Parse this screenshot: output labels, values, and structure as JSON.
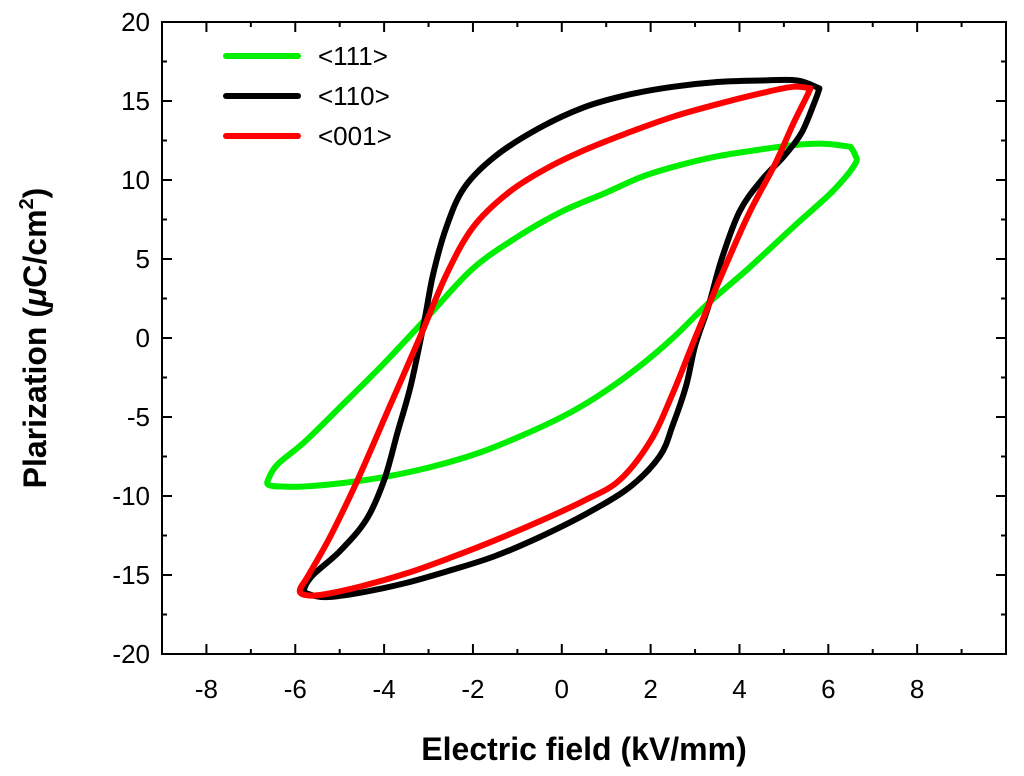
{
  "chart_data": {
    "type": "line",
    "title": "",
    "xlabel": "Electric field (kV/mm)",
    "ylabel": "Plarization (μC/cm²)",
    "ylabel_parts": {
      "main": "Plarization (",
      "mu": "μ",
      "unit": "C/cm",
      "sup": "2",
      "close": ")"
    },
    "xlim": [
      -9,
      10
    ],
    "ylim": [
      -20,
      20
    ],
    "xticks": [
      -8,
      -6,
      -4,
      -2,
      0,
      2,
      4,
      6,
      8
    ],
    "yticks": [
      -20,
      -15,
      -10,
      -5,
      0,
      5,
      10,
      15,
      20
    ],
    "xtick_labels": [
      "-8",
      "-6",
      "-4",
      "-2",
      "0",
      "2",
      "4",
      "6",
      "8"
    ],
    "ytick_labels": [
      "-20",
      "-15",
      "-10",
      "-5",
      "0",
      "5",
      "10",
      "15",
      "20"
    ],
    "legend_position": "top-left",
    "series": [
      {
        "name": "<111>",
        "color": "#00ee00",
        "x": [
          6.5,
          6.6,
          6.6,
          6.1,
          5.2,
          4.2,
          3.3,
          2.5,
          1.7,
          0.8,
          0.0,
          -1.0,
          -2.0,
          -3.0,
          -4.0,
          -5.0,
          -5.8,
          -6.3,
          -6.6,
          -6.6,
          -6.4,
          -5.8,
          -5.0,
          -4.0,
          -3.0,
          -2.0,
          -1.0,
          0.0,
          1.0,
          1.8,
          2.6,
          3.5,
          4.4,
          5.2,
          5.9,
          6.5
        ],
        "y": [
          12.1,
          11.6,
          11.0,
          9.3,
          7.0,
          4.4,
          2.2,
          0.0,
          -1.9,
          -3.7,
          -5.0,
          -6.3,
          -7.4,
          -8.2,
          -8.8,
          -9.2,
          -9.4,
          -9.4,
          -9.3,
          -8.9,
          -8.0,
          -6.6,
          -4.4,
          -1.6,
          1.4,
          4.4,
          6.4,
          8.0,
          9.2,
          10.2,
          10.9,
          11.5,
          11.9,
          12.2,
          12.3,
          12.1
        ]
      },
      {
        "name": "<110>",
        "color": "#000000",
        "x": [
          5.8,
          5.7,
          5.4,
          5.0,
          4.5,
          4.0,
          3.6,
          3.3,
          3.0,
          2.8,
          2.5,
          2.2,
          1.5,
          0.5,
          -0.5,
          -1.5,
          -2.5,
          -3.5,
          -4.5,
          -5.3,
          -5.7,
          -5.8,
          -5.6,
          -5.0,
          -4.4,
          -4.0,
          -3.7,
          -3.4,
          -3.1,
          -2.9,
          -2.6,
          -2.2,
          -1.5,
          -0.5,
          0.5,
          1.5,
          2.5,
          3.5,
          4.5,
          5.3,
          5.8
        ],
        "y": [
          15.8,
          15.0,
          13.0,
          11.5,
          10.0,
          8.0,
          5.0,
          2.0,
          -0.5,
          -3.0,
          -5.5,
          -7.5,
          -9.5,
          -11.2,
          -12.6,
          -13.8,
          -14.7,
          -15.5,
          -16.1,
          -16.4,
          -16.2,
          -15.9,
          -15.0,
          -13.5,
          -11.5,
          -9.0,
          -6.0,
          -3.0,
          1.0,
          4.0,
          7.0,
          9.5,
          11.5,
          13.3,
          14.6,
          15.4,
          15.9,
          16.2,
          16.3,
          16.3,
          15.8
        ]
      },
      {
        "name": "<001>",
        "color": "#ff0000",
        "x": [
          5.6,
          5.5,
          5.2,
          4.8,
          4.2,
          3.6,
          3.0,
          2.5,
          2.0,
          1.3,
          0.5,
          -0.5,
          -1.5,
          -2.5,
          -3.5,
          -4.5,
          -5.3,
          -5.7,
          -5.9,
          -5.7,
          -5.2,
          -4.6,
          -3.9,
          -3.2,
          -2.6,
          -2.0,
          -1.2,
          -0.3,
          0.6,
          1.5,
          2.5,
          3.5,
          4.5,
          5.2,
          5.6
        ],
        "y": [
          15.8,
          15.2,
          13.5,
          11.0,
          7.8,
          4.0,
          0.0,
          -3.5,
          -6.5,
          -9.0,
          -10.3,
          -11.6,
          -12.8,
          -13.9,
          -14.9,
          -15.7,
          -16.2,
          -16.3,
          -16.0,
          -15.0,
          -12.5,
          -9.0,
          -4.5,
          0.0,
          4.0,
          7.0,
          9.2,
          10.8,
          12.0,
          13.0,
          14.0,
          14.8,
          15.5,
          15.9,
          15.8
        ]
      }
    ]
  }
}
